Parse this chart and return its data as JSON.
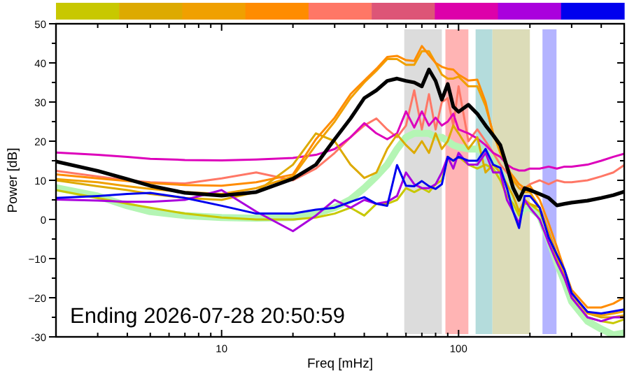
{
  "chart_data": {
    "type": "line",
    "xlabel": "Freq [mHz]",
    "ylabel": "Power [dB]",
    "log": "x",
    "xlim": [
      2,
      500
    ],
    "ylim": [
      -30,
      50
    ],
    "xticks": [
      {
        "value": 2,
        "label": null
      },
      {
        "value": 3,
        "label": null
      },
      {
        "value": 4,
        "label": null
      },
      {
        "value": 5,
        "label": null
      },
      {
        "value": 6,
        "label": null
      },
      {
        "value": 7,
        "label": null
      },
      {
        "value": 8,
        "label": null
      },
      {
        "value": 9,
        "label": null
      },
      10,
      {
        "value": 20,
        "label": null
      },
      {
        "value": 30,
        "label": null
      },
      {
        "value": 40,
        "label": null
      },
      {
        "value": 50,
        "label": null
      },
      {
        "value": 60,
        "label": null
      },
      {
        "value": 70,
        "label": null
      },
      {
        "value": 80,
        "label": null
      },
      {
        "value": 90,
        "label": null
      },
      100,
      {
        "value": 200,
        "label": null
      },
      {
        "value": 300,
        "label": null
      },
      {
        "value": 400,
        "label": null
      },
      {
        "value": 500,
        "label": null
      }
    ],
    "yticks": [
      -30,
      {
        "value": -25,
        "label": null
      },
      {
        "value": -20,
        "label": "−20"
      },
      {
        "value": -15,
        "label": null
      },
      {
        "value": -10,
        "label": "−10"
      },
      {
        "value": -5,
        "label": null
      },
      0,
      {
        "value": 5,
        "label": null
      },
      10,
      {
        "value": 15,
        "label": null
      },
      20,
      {
        "value": 25,
        "label": null
      },
      30,
      {
        "value": 35,
        "label": null
      },
      40,
      {
        "value": 45,
        "label": null
      },
      50
    ],
    "grid": false,
    "marker": "none",
    "line_style": "solid",
    "x": [
      2,
      3,
      4,
      5,
      7,
      10,
      14,
      20,
      25,
      30,
      35,
      40,
      45,
      50,
      55,
      60,
      65,
      70,
      75,
      80,
      85,
      90,
      95,
      100,
      110,
      120,
      130,
      140,
      150,
      160,
      170,
      180,
      190,
      200,
      220,
      240,
      260,
      280,
      300,
      350,
      400,
      450,
      500
    ],
    "bands": [
      {
        "axis": "x",
        "from": 59,
        "to": 85,
        "color": "#dcdcdc"
      },
      {
        "axis": "x",
        "from": 88,
        "to": 110,
        "color": "#ffb4b4"
      },
      {
        "axis": "x",
        "from": 118,
        "to": 139,
        "color": "#b4dcdc"
      },
      {
        "axis": "x",
        "from": 139,
        "to": 200,
        "color": "#dcdcb8"
      },
      {
        "axis": "x",
        "from": 226,
        "to": 259,
        "color": "#b4b4ff"
      }
    ],
    "annotations": [
      "Ending 2026-07-28 20:50:59"
    ],
    "series": [
      {
        "color": "#b4f5b4",
        "values": [
          8.1,
          6,
          3.5,
          2,
          1,
          0.5,
          0.3,
          0.5,
          1.5,
          3,
          5.1,
          8,
          11,
          14,
          18,
          21,
          22,
          22,
          22,
          21,
          21,
          20,
          19,
          18.5,
          18,
          18,
          17,
          15,
          12,
          8,
          4,
          1,
          3,
          3,
          1,
          -5,
          -11,
          -16,
          -21,
          -26,
          -28,
          -29.5,
          -29
        ]
      },
      {
        "color": "#ff7766",
        "values": [
          12.4,
          11,
          10,
          9.5,
          9.2,
          10.5,
          12,
          10,
          13,
          17,
          21,
          24,
          25.8,
          23,
          21,
          24,
          33,
          23,
          32,
          23,
          30,
          31,
          24,
          34,
          20,
          23,
          20,
          17,
          14,
          12,
          10,
          8,
          8,
          9,
          10,
          9,
          10,
          9.5,
          9.5,
          10,
          11,
          12,
          13.9
        ]
      },
      {
        "color": "#dd00bb",
        "values": [
          17.1,
          16.5,
          16,
          15.5,
          15.2,
          15.1,
          15.3,
          15.7,
          16.5,
          18,
          21,
          24.6,
          22,
          20.5,
          22,
          27.6,
          23.5,
          27.6,
          24,
          26,
          24,
          25,
          27,
          23,
          22,
          20.7,
          19,
          17,
          16,
          14,
          13,
          12.5,
          12.5,
          13,
          13,
          13.5,
          13,
          13.5,
          13.5,
          14,
          15,
          16,
          16.8
        ]
      },
      {
        "color": "#c8c800",
        "values": [
          7.5,
          5.5,
          4,
          3,
          1.5,
          0.5,
          0,
          0,
          0.5,
          1.5,
          3,
          1,
          4,
          4,
          5,
          8,
          7,
          8,
          7,
          9,
          10,
          16,
          15,
          16,
          14,
          13,
          14,
          13,
          10,
          6,
          4,
          1,
          4,
          4,
          2,
          -4,
          -10,
          -15,
          -20,
          -25,
          -26,
          -26.5,
          -25.5
        ]
      },
      {
        "color": "#ddaa00",
        "values": [
          10,
          8.5,
          7.5,
          6.5,
          5.5,
          5,
          7,
          14,
          22,
          20,
          14,
          10.6,
          12,
          18,
          21.7,
          19,
          17,
          20,
          17,
          22,
          18,
          20,
          24,
          22,
          18,
          21,
          12,
          14,
          12,
          9,
          6,
          2,
          5,
          4,
          3,
          -4,
          -10,
          -14,
          -19,
          -24,
          -25,
          -25,
          -24.5
        ]
      },
      {
        "color": "#f0a000",
        "values": [
          10.3,
          9.5,
          8.5,
          7.8,
          7,
          6.5,
          8,
          11,
          19,
          25,
          31,
          35,
          38,
          41,
          41,
          39.5,
          39.5,
          43,
          43,
          40,
          37,
          36,
          36,
          36.5,
          34,
          34,
          29,
          22,
          17,
          14,
          10,
          8,
          7,
          7,
          3,
          -3,
          -9,
          -14,
          -19,
          -24,
          -24.5,
          -24,
          -23.5
        ]
      },
      {
        "color": "#ff8c00",
        "values": [
          11.5,
          10.5,
          9.8,
          9.3,
          8.8,
          8.6,
          9.5,
          11.5,
          20.5,
          26,
          32,
          35.5,
          38.5,
          41.5,
          41.8,
          40.7,
          40.5,
          44.3,
          42,
          40,
          39,
          38.5,
          38.3,
          37,
          35.5,
          35.7,
          30,
          21.5,
          18,
          13,
          11,
          9,
          8,
          8.6,
          5,
          -1,
          -7,
          -12.9,
          -18,
          -22.5,
          -22.5,
          -21.5,
          -19.9
        ]
      },
      {
        "color": "#aa00dd",
        "values": [
          5.1,
          4.8,
          4.5,
          4.5,
          5,
          7.5,
          2,
          -3,
          1,
          5,
          3,
          5,
          4,
          4.5,
          6,
          12,
          9,
          8,
          8,
          9,
          12,
          16,
          13,
          17,
          14,
          14,
          17,
          12,
          12,
          5,
          2,
          -1,
          5,
          3,
          0,
          -6,
          -11,
          -15,
          -20,
          -25,
          -26,
          -25,
          -25
        ]
      },
      {
        "color": "#0000ee",
        "values": [
          5.5,
          6,
          6.5,
          6.8,
          5.5,
          3.5,
          1.5,
          1.5,
          2.5,
          3,
          4.5,
          5.7,
          4,
          3.5,
          13.9,
          8.6,
          8.5,
          9.8,
          8.5,
          7.8,
          9,
          16,
          15,
          16,
          15,
          15,
          18,
          14,
          13.2,
          8,
          2,
          -2.2,
          6,
          6,
          3,
          -4.6,
          -9,
          -12.9,
          -18.8,
          -23.6,
          -24,
          -23.5,
          -23
        ]
      },
      {
        "color": "#000000",
        "values": [
          14.8,
          12.4,
          10.3,
          8.6,
          6.8,
          6.1,
          7,
          10.4,
          14,
          20.5,
          25.8,
          31,
          33,
          35.4,
          36,
          35.4,
          35,
          34,
          38.3,
          35.4,
          30.6,
          34.6,
          28.8,
          27.5,
          29.3,
          27,
          24,
          21.5,
          19,
          13.5,
          8,
          5,
          8,
          7.5,
          6.5,
          5.5,
          3.6,
          4,
          4.3,
          4.8,
          5.5,
          6.2,
          7.1
        ]
      }
    ]
  }
}
